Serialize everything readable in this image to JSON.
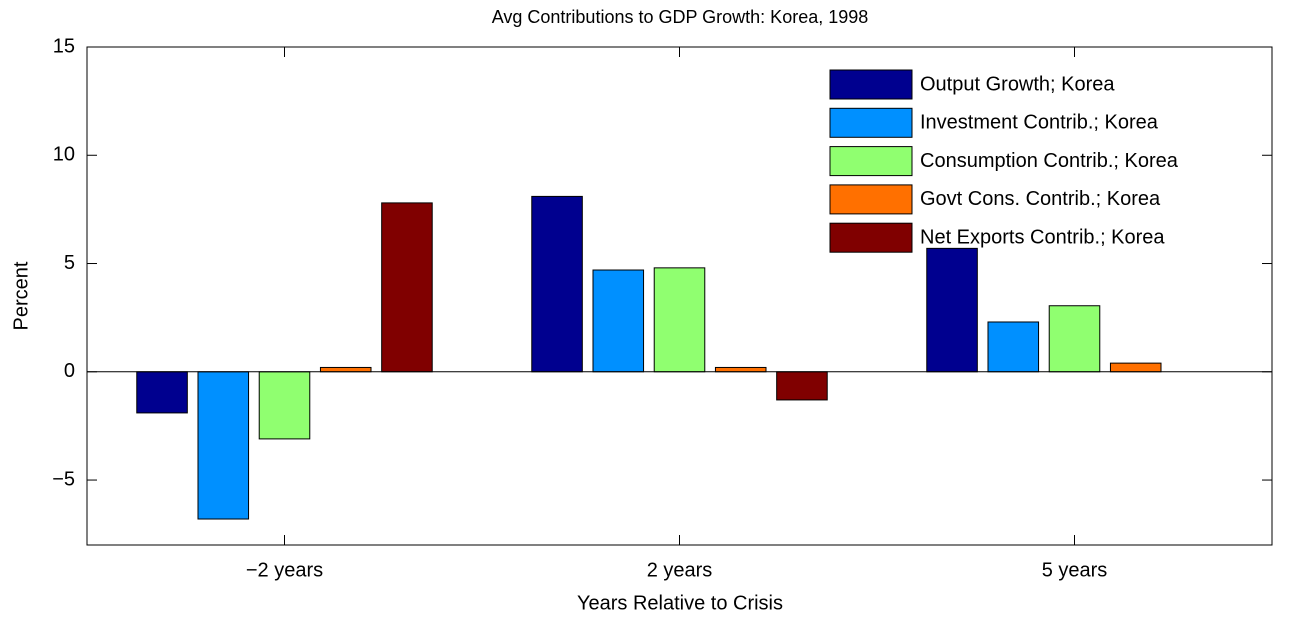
{
  "chart_data": {
    "type": "bar",
    "title": "Avg Contributions to GDP Growth: Korea, 1998",
    "x_label": "Years Relative to Crisis",
    "y_label": "Percent",
    "categories": [
      "−2 years",
      "2 years",
      "5 years"
    ],
    "series": [
      {
        "name": "Output Growth; Korea",
        "color": "#00008f",
        "values": [
          -1.9,
          8.1,
          5.7
        ]
      },
      {
        "name": "Investment Contrib.; Korea",
        "color": "#0090ff",
        "values": [
          -6.8,
          4.7,
          2.3
        ]
      },
      {
        "name": "Consumption Contrib.; Korea",
        "color": "#90ff70",
        "values": [
          -3.1,
          4.8,
          3.05
        ]
      },
      {
        "name": "Govt Cons. Contrib.; Korea",
        "color": "#ff7000",
        "values": [
          0.2,
          0.2,
          0.4
        ]
      },
      {
        "name": "Net Exports Contrib.; Korea",
        "color": "#800000",
        "values": [
          7.8,
          -1.3,
          0
        ]
      }
    ],
    "ylim": [
      -8,
      15
    ],
    "yticks": [
      {
        "value": -5,
        "label": "−5"
      },
      0,
      5,
      10,
      15
    ],
    "legend": "northeast"
  }
}
